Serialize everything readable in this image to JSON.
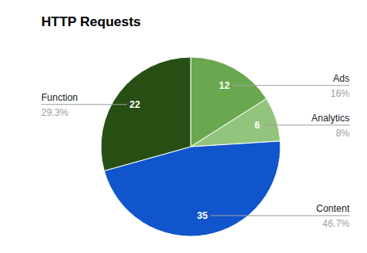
{
  "chart_data": {
    "type": "pie",
    "title": "HTTP Requests",
    "categories": [
      "Ads",
      "Analytics",
      "Content",
      "Function"
    ],
    "values": [
      12,
      6,
      35,
      22
    ],
    "percent_labels": [
      "16%",
      "8%",
      "46.7%",
      "29.3%"
    ],
    "colors": [
      "#6aa84f",
      "#93c47d",
      "#1155cc",
      "#274e13"
    ],
    "data_labels": true
  }
}
